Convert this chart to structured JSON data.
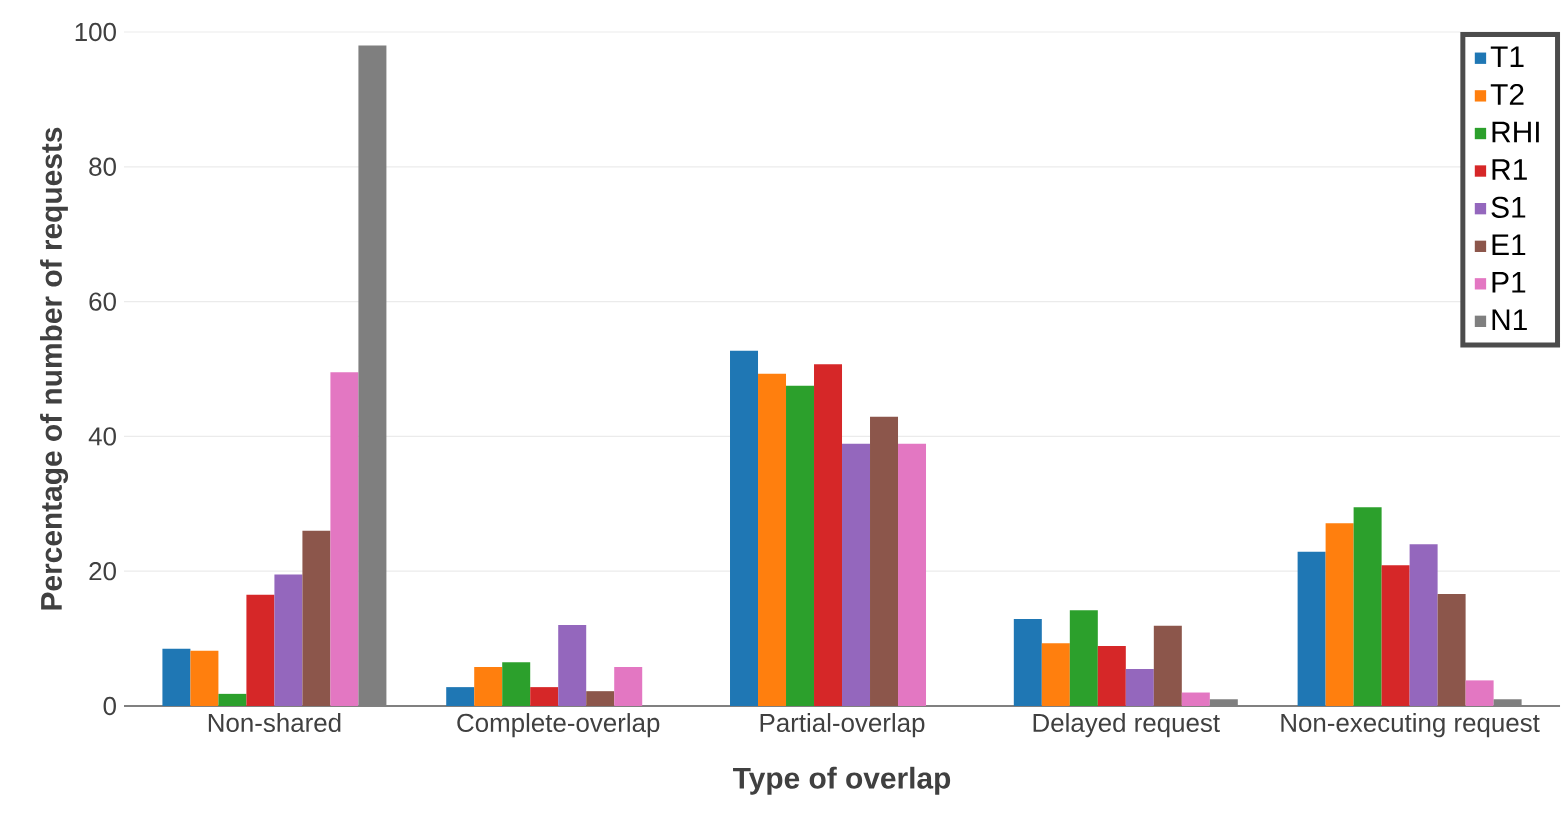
{
  "chart_data": {
    "type": "bar",
    "xlabel": "Type of overlap",
    "ylabel": "Percentage of number of requests",
    "categories": [
      "Non-shared",
      "Complete-overlap",
      "Partial-overlap",
      "Delayed request",
      "Non-executing request"
    ],
    "ylim": [
      0,
      100
    ],
    "yticks": [
      0,
      20,
      40,
      60,
      80,
      100
    ],
    "grid": "y",
    "legend": "top right",
    "series": [
      {
        "name": "T1",
        "color": "#1f77b4",
        "values": [
          8.5,
          2.8,
          52.7,
          12.9,
          22.9
        ]
      },
      {
        "name": "T2",
        "color": "#ff7f0e",
        "values": [
          8.2,
          5.8,
          49.3,
          9.3,
          27.1
        ]
      },
      {
        "name": "RHI",
        "color": "#2ca02c",
        "values": [
          1.8,
          6.5,
          47.5,
          14.2,
          29.5
        ]
      },
      {
        "name": "R1",
        "color": "#d62728",
        "values": [
          16.5,
          2.8,
          50.7,
          8.9,
          20.9
        ]
      },
      {
        "name": "S1",
        "color": "#9467bd",
        "values": [
          19.5,
          12,
          38.9,
          5.5,
          24.0
        ]
      },
      {
        "name": "E1",
        "color": "#8c564b",
        "values": [
          26,
          2.2,
          42.9,
          11.9,
          16.6
        ]
      },
      {
        "name": "P1",
        "color": "#e377c2",
        "values": [
          49.5,
          5.8,
          38.9,
          2.0,
          3.8
        ]
      },
      {
        "name": "N1",
        "color": "#7f7f7f",
        "values": [
          98,
          null,
          null,
          1.0,
          1.0
        ]
      }
    ]
  }
}
